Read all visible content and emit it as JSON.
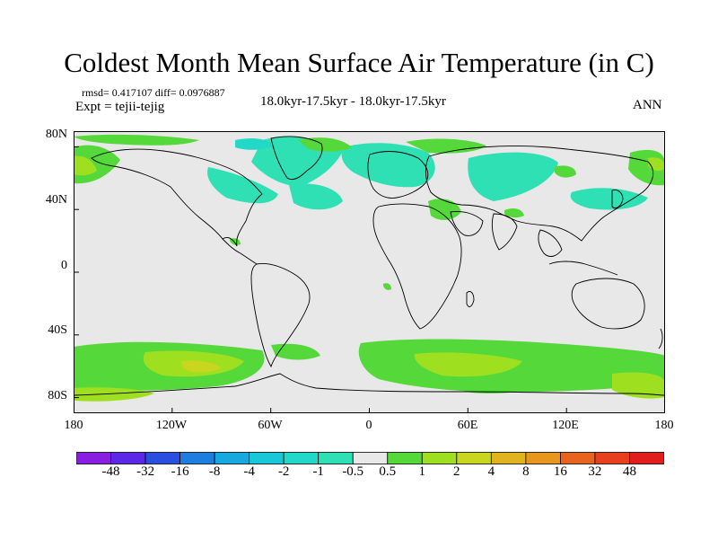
{
  "header": {
    "title": "Coldest Month Mean Surface Air Temperature (in C)",
    "stats": "rmsd= 0.417107 diff= 0.0976887",
    "expt": "Expt = tejii-tejig",
    "period": "18.0kyr-17.5kyr - 18.0kyr-17.5kyr",
    "season": "ANN"
  },
  "axes": {
    "lat_labels": [
      "80N",
      "40N",
      "0",
      "40S",
      "80S"
    ],
    "lon_labels": [
      "180",
      "120W",
      "60W",
      "0",
      "60E",
      "120E",
      "180"
    ]
  },
  "colorbar": {
    "labels": [
      "-48",
      "-32",
      "-16",
      "-8",
      "-4",
      "-2",
      "-1",
      "-0.5",
      "0.5",
      "1",
      "2",
      "4",
      "8",
      "16",
      "32",
      "48"
    ],
    "colors": [
      "#8a1ee0",
      "#5a28e6",
      "#2a4fe0",
      "#1d7ee0",
      "#18a8e0",
      "#19c8d8",
      "#22d8c8",
      "#2ee0b4",
      "#e8e8e8",
      "#55d83a",
      "#9ee020",
      "#c8d61e",
      "#e0b41e",
      "#e8961e",
      "#e8641e",
      "#e8401e",
      "#e01e1e"
    ]
  },
  "map_data": {
    "projection": "cylindrical-equidistant",
    "lon_range": [
      -180,
      180
    ],
    "lat_range": [
      -90,
      90
    ],
    "background_color": "#e8e8e8",
    "land_outline": "black coastlines",
    "field": "temperature difference"
  }
}
